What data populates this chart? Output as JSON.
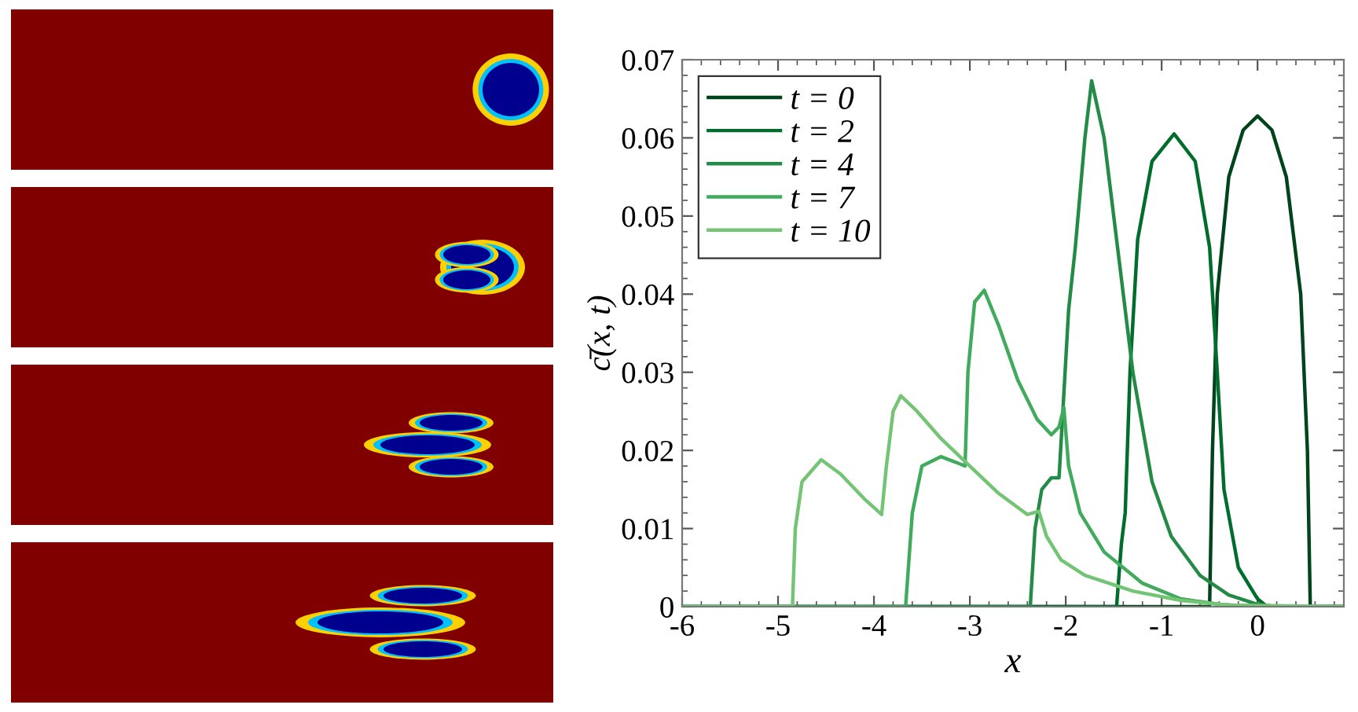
{
  "chart_data": {
    "type": "line",
    "xlabel": "x",
    "ylabel": "c̄(x, t)",
    "xlim": [
      -6,
      0.9
    ],
    "xticks": [
      -6,
      -5,
      -4,
      -3,
      -2,
      -1,
      0
    ],
    "ylim": [
      0,
      0.07
    ],
    "yticks": [
      0,
      0.01,
      0.02,
      0.03,
      0.04,
      0.05,
      0.06,
      0.07
    ],
    "grid": false,
    "legend": "top left",
    "marker": "none",
    "line_style": "solid",
    "series": [
      {
        "name": "t = 0",
        "color": "#00441b",
        "x": [
          -6,
          -0.5,
          -0.47,
          -0.42,
          -0.3,
          -0.15,
          0,
          0.15,
          0.3,
          0.45,
          0.52,
          0.55,
          0.9
        ],
        "values": [
          0,
          0,
          0.02,
          0.04,
          0.055,
          0.061,
          0.0628,
          0.061,
          0.055,
          0.04,
          0.02,
          0,
          0
        ]
      },
      {
        "name": "t = 2",
        "color": "#006d2c",
        "x": [
          -6,
          -1.47,
          -1.42,
          -1.38,
          -1.33,
          -1.25,
          -1.1,
          -0.87,
          -0.65,
          -0.5,
          -0.42,
          -0.35,
          -0.2,
          0,
          0.1,
          0.9
        ],
        "values": [
          0,
          0,
          0.008,
          0.012,
          0.03,
          0.047,
          0.057,
          0.0605,
          0.057,
          0.046,
          0.03,
          0.015,
          0.005,
          0.001,
          0,
          0
        ]
      },
      {
        "name": "t = 4",
        "color": "#238b45",
        "x": [
          -6,
          -2.37,
          -2.32,
          -2.25,
          -2.15,
          -2.07,
          -2.03,
          -1.97,
          -1.9,
          -1.8,
          -1.73,
          -1.6,
          -1.45,
          -1.3,
          -1.1,
          -0.9,
          -0.6,
          -0.3,
          0,
          0.2,
          0.9
        ],
        "values": [
          0,
          0,
          0.01,
          0.015,
          0.0165,
          0.0165,
          0.025,
          0.038,
          0.046,
          0.06,
          0.0673,
          0.06,
          0.045,
          0.03,
          0.016,
          0.009,
          0.004,
          0.0015,
          0.0003,
          0,
          0
        ]
      },
      {
        "name": "t = 7",
        "color": "#41ab5d",
        "x": [
          -6,
          -3.67,
          -3.6,
          -3.5,
          -3.3,
          -3.15,
          -3.05,
          -3.02,
          -2.95,
          -2.85,
          -2.7,
          -2.5,
          -2.3,
          -2.15,
          -2.07,
          -2.02,
          -1.97,
          -1.85,
          -1.6,
          -1.2,
          -0.8,
          -0.4,
          0,
          0.9
        ],
        "values": [
          0,
          0,
          0.012,
          0.018,
          0.0192,
          0.0185,
          0.018,
          0.03,
          0.039,
          0.0405,
          0.036,
          0.029,
          0.024,
          0.022,
          0.023,
          0.0255,
          0.018,
          0.012,
          0.007,
          0.003,
          0.001,
          0.0003,
          0,
          0
        ]
      },
      {
        "name": "t = 10",
        "color": "#74c476",
        "x": [
          -6,
          -4.85,
          -4.82,
          -4.75,
          -4.55,
          -4.35,
          -4.1,
          -3.92,
          -3.87,
          -3.8,
          -3.72,
          -3.55,
          -3.3,
          -3.0,
          -2.7,
          -2.4,
          -2.28,
          -2.2,
          -2.05,
          -1.8,
          -1.3,
          -0.8,
          -0.3,
          0.9
        ],
        "values": [
          0,
          0,
          0.01,
          0.016,
          0.0188,
          0.017,
          0.0138,
          0.0118,
          0.018,
          0.025,
          0.027,
          0.025,
          0.0215,
          0.018,
          0.0145,
          0.0118,
          0.0122,
          0.009,
          0.006,
          0.004,
          0.002,
          0.0008,
          0.0002,
          0
        ]
      }
    ]
  }
}
